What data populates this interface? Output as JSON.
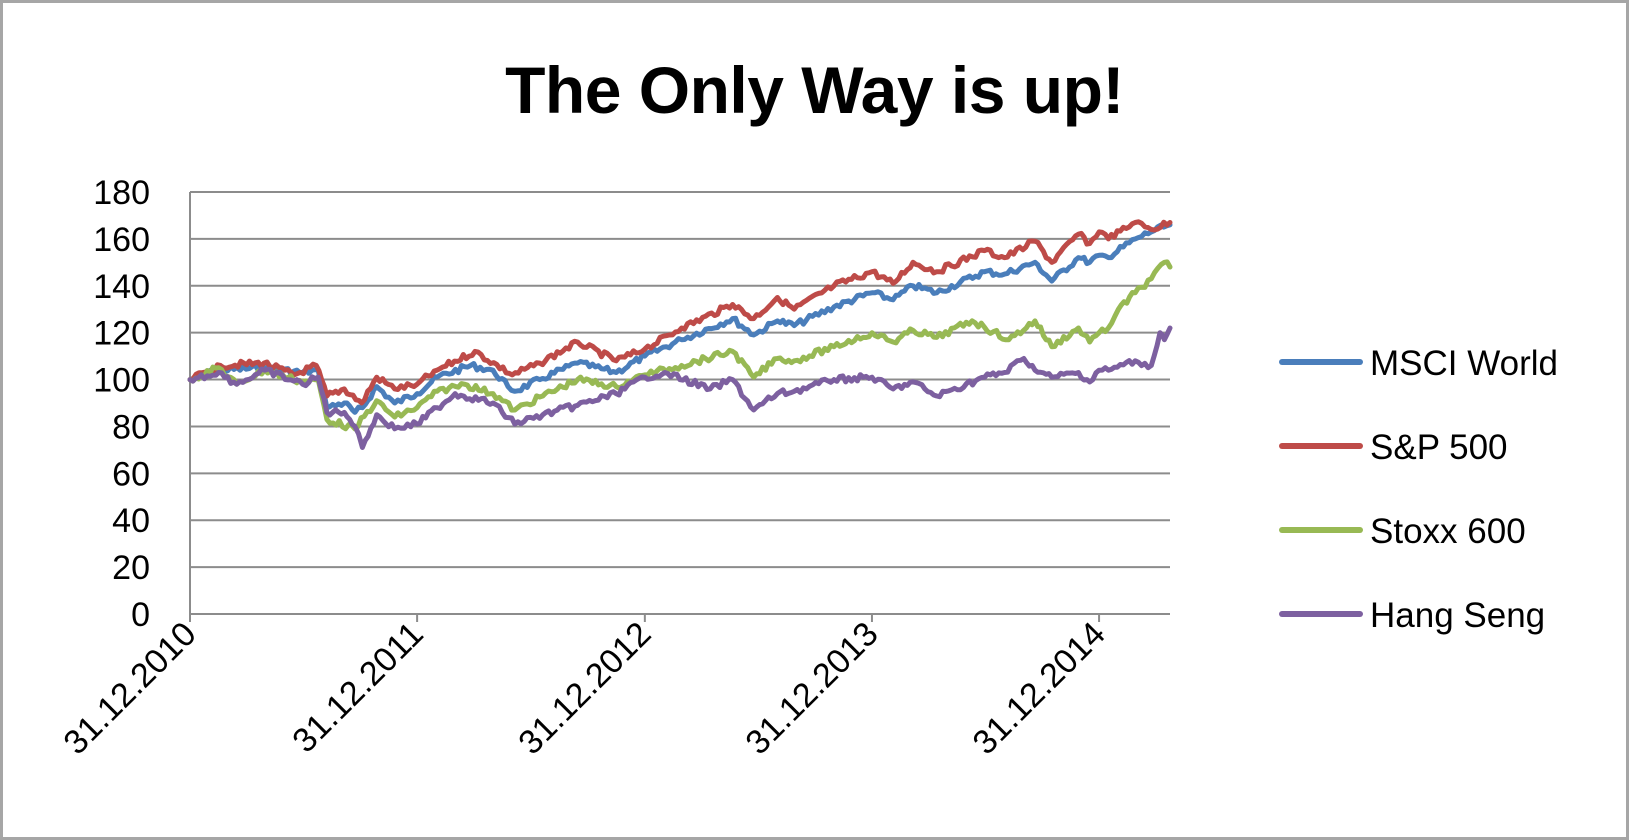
{
  "chart_data": {
    "type": "line",
    "title": "The Only Way is up!",
    "xlabel": "",
    "ylabel": "",
    "ylim": [
      0,
      180
    ],
    "yticks": [
      "0",
      "20",
      "40",
      "60",
      "80",
      "100",
      "120",
      "140",
      "160",
      "180"
    ],
    "xlim": [
      "2010-12-31",
      "2015-04-24"
    ],
    "xticks": [
      "31.12.2010",
      "31.12.2011",
      "31.12.2012",
      "31.12.2013",
      "31.12.2014"
    ],
    "grid": true,
    "legend": "right",
    "series": [
      {
        "name": "MSCI World",
        "color": "#4a7ebb",
        "points": [
          [
            "2010-12-31",
            100
          ],
          [
            "2011-02-15",
            104
          ],
          [
            "2011-04-30",
            105
          ],
          [
            "2011-06-30",
            103
          ],
          [
            "2011-07-25",
            104
          ],
          [
            "2011-08-08",
            88
          ],
          [
            "2011-09-05",
            90
          ],
          [
            "2011-09-22",
            86
          ],
          [
            "2011-10-04",
            88
          ],
          [
            "2011-10-27",
            97
          ],
          [
            "2011-11-25",
            90
          ],
          [
            "2011-12-31",
            94
          ],
          [
            "2012-02-01",
            101
          ],
          [
            "2012-03-26",
            106
          ],
          [
            "2012-05-01",
            104
          ],
          [
            "2012-05-25",
            97
          ],
          [
            "2012-06-05",
            95
          ],
          [
            "2012-07-15",
            100
          ],
          [
            "2012-09-14",
            107
          ],
          [
            "2012-11-15",
            103
          ],
          [
            "2012-12-31",
            110
          ],
          [
            "2013-02-28",
            117
          ],
          [
            "2013-05-21",
            126
          ],
          [
            "2013-06-24",
            119
          ],
          [
            "2013-08-01",
            125
          ],
          [
            "2013-08-28",
            123
          ],
          [
            "2013-10-31",
            131
          ],
          [
            "2013-12-31",
            137
          ],
          [
            "2014-02-03",
            134
          ],
          [
            "2014-03-07",
            140
          ],
          [
            "2014-04-14",
            137
          ],
          [
            "2014-06-30",
            146
          ],
          [
            "2014-08-01",
            145
          ],
          [
            "2014-09-19",
            150
          ],
          [
            "2014-10-16",
            142
          ],
          [
            "2014-11-28",
            152
          ],
          [
            "2014-12-16",
            150
          ],
          [
            "2014-12-31",
            153
          ],
          [
            "2015-01-15",
            152
          ],
          [
            "2015-02-27",
            160
          ],
          [
            "2015-03-25",
            163
          ],
          [
            "2015-04-24",
            166
          ]
        ]
      },
      {
        "name": "S&P 500",
        "color": "#be4b48",
        "points": [
          [
            "2010-12-31",
            100
          ],
          [
            "2011-02-18",
            106
          ],
          [
            "2011-04-29",
            107
          ],
          [
            "2011-06-16",
            102
          ],
          [
            "2011-07-22",
            106
          ],
          [
            "2011-08-08",
            93
          ],
          [
            "2011-09-05",
            96
          ],
          [
            "2011-10-03",
            90
          ],
          [
            "2011-10-27",
            101
          ],
          [
            "2011-11-25",
            96
          ],
          [
            "2011-12-31",
            98
          ],
          [
            "2012-02-01",
            104
          ],
          [
            "2012-04-02",
            112
          ],
          [
            "2012-06-01",
            102
          ],
          [
            "2012-07-15",
            107
          ],
          [
            "2012-09-14",
            116
          ],
          [
            "2012-11-15",
            108
          ],
          [
            "2012-12-31",
            113
          ],
          [
            "2013-02-28",
            122
          ],
          [
            "2013-05-21",
            132
          ],
          [
            "2013-06-24",
            126
          ],
          [
            "2013-08-01",
            135
          ],
          [
            "2013-08-28",
            130
          ],
          [
            "2013-10-31",
            140
          ],
          [
            "2013-12-31",
            146
          ],
          [
            "2014-02-03",
            141
          ],
          [
            "2014-03-07",
            150
          ],
          [
            "2014-04-14",
            146
          ],
          [
            "2014-06-30",
            155
          ],
          [
            "2014-08-01",
            152
          ],
          [
            "2014-09-19",
            159
          ],
          [
            "2014-10-16",
            150
          ],
          [
            "2014-11-28",
            162
          ],
          [
            "2014-12-16",
            158
          ],
          [
            "2014-12-31",
            163
          ],
          [
            "2015-01-15",
            160
          ],
          [
            "2015-02-27",
            167
          ],
          [
            "2015-03-25",
            164
          ],
          [
            "2015-04-24",
            167
          ]
        ]
      },
      {
        "name": "Stoxx 600",
        "color": "#98b954",
        "points": [
          [
            "2010-12-31",
            100
          ],
          [
            "2011-02-15",
            105
          ],
          [
            "2011-03-16",
            98
          ],
          [
            "2011-04-30",
            104
          ],
          [
            "2011-06-30",
            99
          ],
          [
            "2011-07-25",
            100
          ],
          [
            "2011-08-08",
            83
          ],
          [
            "2011-09-22",
            79
          ],
          [
            "2011-10-27",
            91
          ],
          [
            "2011-11-25",
            84
          ],
          [
            "2011-12-31",
            88
          ],
          [
            "2012-02-01",
            95
          ],
          [
            "2012-03-16",
            98
          ],
          [
            "2012-05-01",
            94
          ],
          [
            "2012-06-05",
            87
          ],
          [
            "2012-07-20",
            93
          ],
          [
            "2012-09-14",
            100
          ],
          [
            "2012-11-15",
            97
          ],
          [
            "2012-12-31",
            102
          ],
          [
            "2013-02-28",
            106
          ],
          [
            "2013-05-21",
            112
          ],
          [
            "2013-06-24",
            101
          ],
          [
            "2013-08-01",
            109
          ],
          [
            "2013-08-28",
            108
          ],
          [
            "2013-10-31",
            114
          ],
          [
            "2013-12-31",
            120
          ],
          [
            "2014-02-03",
            116
          ],
          [
            "2014-03-07",
            121
          ],
          [
            "2014-04-14",
            118
          ],
          [
            "2014-06-10",
            125
          ],
          [
            "2014-08-08",
            117
          ],
          [
            "2014-09-19",
            125
          ],
          [
            "2014-10-16",
            114
          ],
          [
            "2014-11-28",
            122
          ],
          [
            "2014-12-16",
            116
          ],
          [
            "2014-12-31",
            120
          ],
          [
            "2015-01-15",
            122
          ],
          [
            "2015-01-31",
            130
          ],
          [
            "2015-02-27",
            137
          ],
          [
            "2015-03-25",
            143
          ],
          [
            "2015-04-15",
            150
          ],
          [
            "2015-04-24",
            148
          ]
        ]
      },
      {
        "name": "Hang Seng",
        "color": "#7d60a0",
        "points": [
          [
            "2010-12-31",
            100
          ],
          [
            "2011-02-15",
            103
          ],
          [
            "2011-03-16",
            98
          ],
          [
            "2011-04-30",
            104
          ],
          [
            "2011-06-30",
            98
          ],
          [
            "2011-07-25",
            101
          ],
          [
            "2011-08-08",
            86
          ],
          [
            "2011-09-05",
            86
          ],
          [
            "2011-09-22",
            80
          ],
          [
            "2011-10-04",
            71
          ],
          [
            "2011-10-27",
            85
          ],
          [
            "2011-11-25",
            79
          ],
          [
            "2011-12-31",
            81
          ],
          [
            "2012-02-01",
            88
          ],
          [
            "2012-03-01",
            94
          ],
          [
            "2012-05-01",
            90
          ],
          [
            "2012-06-05",
            81
          ],
          [
            "2012-07-20",
            85
          ],
          [
            "2012-09-14",
            89
          ],
          [
            "2012-11-15",
            94
          ],
          [
            "2012-12-31",
            101
          ],
          [
            "2013-02-01",
            103
          ],
          [
            "2013-04-15",
            96
          ],
          [
            "2013-05-21",
            100
          ],
          [
            "2013-06-24",
            87
          ],
          [
            "2013-08-01",
            94
          ],
          [
            "2013-08-28",
            95
          ],
          [
            "2013-10-31",
            100
          ],
          [
            "2013-12-31",
            101
          ],
          [
            "2014-02-03",
            96
          ],
          [
            "2014-03-07",
            99
          ],
          [
            "2014-04-14",
            93
          ],
          [
            "2014-06-30",
            101
          ],
          [
            "2014-08-01",
            103
          ],
          [
            "2014-09-01",
            109
          ],
          [
            "2014-09-19",
            104
          ],
          [
            "2014-10-16",
            101
          ],
          [
            "2014-11-28",
            103
          ],
          [
            "2014-12-16",
            99
          ],
          [
            "2014-12-31",
            104
          ],
          [
            "2015-01-15",
            104
          ],
          [
            "2015-02-27",
            108
          ],
          [
            "2015-03-25",
            106
          ],
          [
            "2015-04-08",
            120
          ],
          [
            "2015-04-15",
            117
          ],
          [
            "2015-04-24",
            122
          ]
        ]
      }
    ]
  }
}
